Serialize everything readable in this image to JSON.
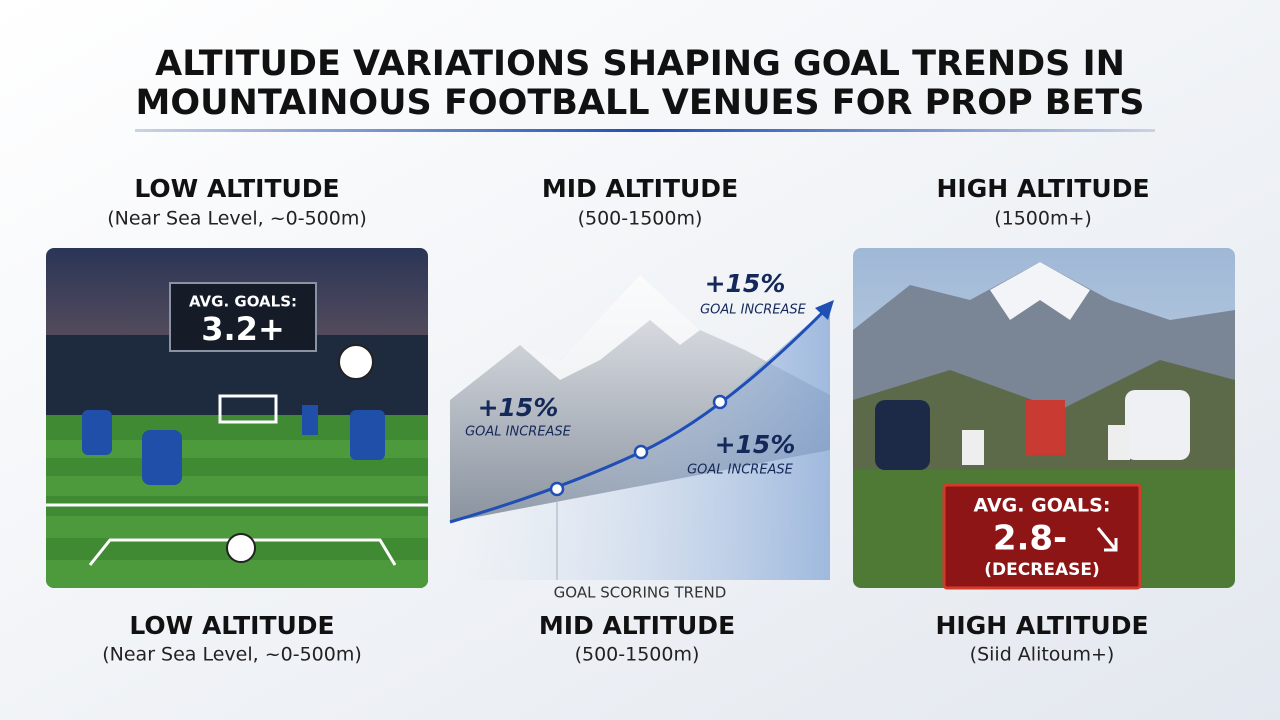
{
  "header": {
    "title_lines": [
      "ALTITUDE VARIATIONS SHAPING GOAL TRENDS IN",
      "MOUNTAINOUS FOOTBALL VENUES FOR PROP BETS"
    ]
  },
  "columns": [
    {
      "heading": "LOW ALTITUDE",
      "range": "(Near Sea Level, ~0-500m)"
    },
    {
      "heading": "MID ALTITUDE",
      "range": "(500-1500m)"
    },
    {
      "heading": "HIGH ALTITUDE",
      "range": "(1500m+)"
    }
  ],
  "low_panel": {
    "label": "AVG. GOALS:",
    "value": "3.2+"
  },
  "mid_panel": {
    "callouts": [
      {
        "change": "+15%",
        "caption": "GOAL INCREASE"
      },
      {
        "change": "+15%",
        "caption": "GOAL INCREASE"
      },
      {
        "change": "+15%",
        "caption": "GOAL INCREASE"
      }
    ],
    "trend_label": "GOAL SCORING TREND"
  },
  "high_panel": {
    "label": "AVG. GOALS:",
    "value": "2.8-",
    "note": "(DECREASE)"
  },
  "footer": [
    {
      "heading": "LOW ALTITUDE",
      "range": "(Near Sea Level, ~0-500m)"
    },
    {
      "heading": "MID ALTITUDE",
      "range": "(500-1500m)"
    },
    {
      "heading": "HIGH ALTITUDE",
      "range": "(Siid Alitoum+)"
    }
  ]
}
